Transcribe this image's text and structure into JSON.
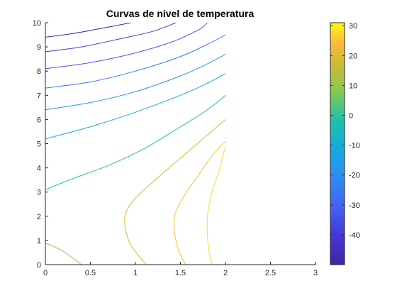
{
  "chart_data": {
    "type": "contour",
    "title": "Curvas de nivel de temperatura",
    "xlabel": "",
    "ylabel": "",
    "xlim": [
      0,
      3
    ],
    "ylim": [
      0,
      10
    ],
    "x_ticks": [
      "0",
      "0.5",
      "1",
      "1.5",
      "2",
      "2.5",
      "3"
    ],
    "y_ticks": [
      "0",
      "1",
      "2",
      "3",
      "4",
      "5",
      "6",
      "7",
      "8",
      "9",
      "10"
    ],
    "grid": false,
    "colormap": "parula",
    "colorbar": {
      "range": [
        -50,
        31
      ],
      "ticks": [
        "-40",
        "-30",
        "-20",
        "-10",
        "0",
        "10",
        "20",
        "30"
      ]
    },
    "levels": [
      {
        "value": -45,
        "color": "#3e26a8",
        "points": [
          [
            0,
            9.4
          ],
          [
            0.3,
            9.55
          ],
          [
            0.6,
            9.75
          ],
          [
            0.95,
            10
          ]
        ]
      },
      {
        "value": -40,
        "color": "#4536d6",
        "points": [
          [
            0,
            8.8
          ],
          [
            0.4,
            9.0
          ],
          [
            0.85,
            9.35
          ],
          [
            1.2,
            9.65
          ],
          [
            1.45,
            10
          ]
        ]
      },
      {
        "value": -35,
        "color": "#4658f3",
        "points": [
          [
            0,
            8.1
          ],
          [
            0.5,
            8.35
          ],
          [
            1.0,
            8.75
          ],
          [
            1.4,
            9.2
          ],
          [
            1.7,
            9.7
          ],
          [
            1.8,
            10
          ]
        ]
      },
      {
        "value": -30,
        "color": "#3d78fe",
        "points": [
          [
            0,
            7.3
          ],
          [
            0.5,
            7.55
          ],
          [
            1.0,
            8.0
          ],
          [
            1.5,
            8.6
          ],
          [
            1.85,
            9.2
          ],
          [
            2.0,
            9.5
          ]
        ]
      },
      {
        "value": -25,
        "color": "#2897ec",
        "points": [
          [
            0,
            6.4
          ],
          [
            0.5,
            6.7
          ],
          [
            1.0,
            7.15
          ],
          [
            1.5,
            7.8
          ],
          [
            1.8,
            8.3
          ],
          [
            2.0,
            8.7
          ]
        ]
      },
      {
        "value": -20,
        "color": "#16abdc",
        "points": [
          [
            0,
            5.2
          ],
          [
            0.5,
            5.7
          ],
          [
            1.0,
            6.3
          ],
          [
            1.5,
            7.0
          ],
          [
            1.8,
            7.5
          ],
          [
            2.0,
            7.9
          ]
        ]
      },
      {
        "value": -10,
        "color": "#1fc1a6",
        "points": [
          [
            0,
            3.1
          ],
          [
            0.3,
            3.55
          ],
          [
            0.7,
            4.1
          ],
          [
            1.1,
            4.8
          ],
          [
            1.5,
            5.7
          ],
          [
            1.8,
            6.4
          ],
          [
            2.0,
            7.0
          ]
        ]
      },
      {
        "value": 0,
        "color": "#8cc84e",
        "points": [
          [
            0,
            0.9
          ],
          [
            0.2,
            0.55
          ],
          [
            0.4,
            0
          ]
        ]
      },
      {
        "value": 10,
        "color": "#d3bb32",
        "points": [
          [
            1.12,
            0
          ],
          [
            1.05,
            0.3
          ],
          [
            0.95,
            0.8
          ],
          [
            0.9,
            1.3
          ],
          [
            0.88,
            1.8
          ],
          [
            0.9,
            2.2
          ],
          [
            1.0,
            2.75
          ],
          [
            1.25,
            3.6
          ],
          [
            1.5,
            4.4
          ],
          [
            1.75,
            5.2
          ],
          [
            2.0,
            6.0
          ]
        ]
      },
      {
        "value": 20,
        "color": "#fdbd3c",
        "points": [
          [
            1.56,
            0
          ],
          [
            1.5,
            0.4
          ],
          [
            1.45,
            1.0
          ],
          [
            1.43,
            1.6
          ],
          [
            1.45,
            2.2
          ],
          [
            1.55,
            2.9
          ],
          [
            1.7,
            3.7
          ],
          [
            1.85,
            4.5
          ],
          [
            2.0,
            5.1
          ]
        ]
      },
      {
        "value": 30,
        "color": "#f5e02a",
        "points": [
          [
            1.85,
            0
          ],
          [
            1.82,
            0.5
          ],
          [
            1.8,
            1.2
          ],
          [
            1.8,
            2.0
          ],
          [
            1.85,
            3.0
          ],
          [
            1.92,
            3.8
          ],
          [
            2.0,
            4.9
          ]
        ]
      }
    ]
  }
}
